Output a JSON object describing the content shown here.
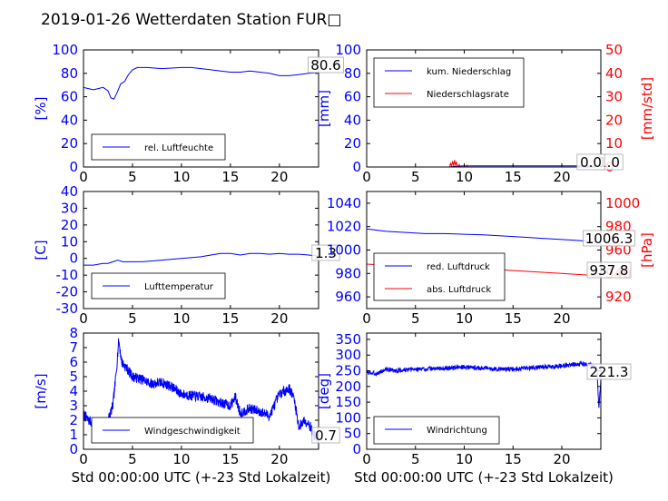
{
  "figure_title": "2019-01-26 Wetterdaten Station FUR□",
  "colors": {
    "primary": "#0000ff",
    "secondary": "#ff0000",
    "axis": "#000000",
    "legend_border": "#000000"
  },
  "chart_data": [
    {
      "type": "line",
      "title": "",
      "xlabel": "",
      "ylabel": "[%]",
      "xlim": [
        0,
        24
      ],
      "xticks": [
        0,
        5,
        10,
        15,
        20
      ],
      "ylim": [
        0,
        100
      ],
      "yticks": [
        0,
        20,
        40,
        60,
        80,
        100
      ],
      "legend": "bottom-left",
      "last_value_label": "80.6",
      "grid": false,
      "series": [
        {
          "name": "rel. Luftfeuchte",
          "axis": "left",
          "color": "#0000ff",
          "points": [
            [
              0,
              68
            ],
            [
              0.5,
              67
            ],
            [
              1,
              66
            ],
            [
              1.5,
              67
            ],
            [
              2,
              68
            ],
            [
              2.5,
              65
            ],
            [
              2.8,
              59
            ],
            [
              3.1,
              58
            ],
            [
              3.4,
              63
            ],
            [
              3.8,
              71
            ],
            [
              4.2,
              73
            ],
            [
              4.6,
              79
            ],
            [
              5,
              83
            ],
            [
              5.5,
              85
            ],
            [
              6.5,
              85
            ],
            [
              8,
              84
            ],
            [
              10,
              85
            ],
            [
              11,
              85
            ],
            [
              12,
              84
            ],
            [
              13,
              83
            ],
            [
              14,
              82
            ],
            [
              15,
              81
            ],
            [
              16,
              81
            ],
            [
              17,
              82
            ],
            [
              18,
              81
            ],
            [
              19,
              80
            ],
            [
              20,
              78
            ],
            [
              21,
              78
            ],
            [
              22,
              79
            ],
            [
              23,
              80
            ],
            [
              24,
              80.6
            ]
          ]
        }
      ]
    },
    {
      "type": "line",
      "title": "",
      "xlabel": "",
      "ylabel": "[mm]",
      "ylabel_right": "[mm/std]",
      "xlim": [
        0,
        24
      ],
      "xticks": [
        0,
        5,
        10,
        15,
        20
      ],
      "ylim": [
        0,
        100
      ],
      "yticks": [
        0,
        20,
        40,
        60,
        80,
        100
      ],
      "ylim_right": [
        0,
        50
      ],
      "yticks_right": [
        0,
        10,
        20,
        30,
        40,
        50
      ],
      "legend": "top-left",
      "last_value_label": "1.0",
      "last_value_label_2": "0.0",
      "grid": false,
      "series": [
        {
          "name": "kum. Niederschlag",
          "axis": "left",
          "color": "#0000ff",
          "points": [
            [
              0,
              0
            ],
            [
              8.5,
              0
            ],
            [
              9,
              0.5
            ],
            [
              10,
              1
            ],
            [
              24,
              1
            ]
          ]
        },
        {
          "name": "Niederschlagsrate",
          "axis": "right",
          "color": "#ff0000",
          "points": [
            [
              0,
              0
            ],
            [
              8.5,
              0
            ],
            [
              8.6,
              1.5
            ],
            [
              8.7,
              0.3
            ],
            [
              8.8,
              2.5
            ],
            [
              8.9,
              0.5
            ],
            [
              9,
              3
            ],
            [
              9.1,
              0.8
            ],
            [
              9.2,
              2
            ],
            [
              9.3,
              0.2
            ],
            [
              9.5,
              1
            ],
            [
              9.6,
              0
            ],
            [
              10.2,
              0
            ],
            [
              10.3,
              0.8
            ],
            [
              10.4,
              0
            ],
            [
              24,
              0
            ]
          ]
        }
      ]
    },
    {
      "type": "line",
      "title": "",
      "xlabel": "",
      "ylabel": "[C]",
      "xlim": [
        0,
        24
      ],
      "xticks": [
        0,
        5,
        10,
        15,
        20
      ],
      "ylim": [
        -30,
        40
      ],
      "yticks": [
        -30,
        -20,
        -10,
        0,
        10,
        20,
        30,
        40
      ],
      "legend": "bottom-left",
      "last_value_label": "1.3",
      "grid": false,
      "series": [
        {
          "name": "Lufttemperatur",
          "axis": "left",
          "color": "#0000ff",
          "points": [
            [
              0,
              -4
            ],
            [
              1,
              -4
            ],
            [
              2,
              -3
            ],
            [
              2.5,
              -3
            ],
            [
              3,
              -2
            ],
            [
              3.5,
              -1
            ],
            [
              4,
              -2
            ],
            [
              5,
              -2
            ],
            [
              6,
              -2
            ],
            [
              8,
              -1
            ],
            [
              10,
              0
            ],
            [
              12,
              1
            ],
            [
              13,
              2
            ],
            [
              14,
              3
            ],
            [
              15,
              3
            ],
            [
              16,
              2
            ],
            [
              17,
              3
            ],
            [
              18,
              3
            ],
            [
              19,
              2.5
            ],
            [
              20,
              3
            ],
            [
              21,
              2.5
            ],
            [
              22,
              2.5
            ],
            [
              23,
              2
            ],
            [
              24,
              1.3
            ]
          ]
        }
      ]
    },
    {
      "type": "line",
      "title": "",
      "xlabel": "",
      "ylabel": "",
      "ylabel_right": "[hPa]",
      "xlim": [
        0,
        24
      ],
      "xticks": [
        0,
        5,
        10,
        15,
        20
      ],
      "ylim": [
        950,
        1050
      ],
      "yticks": [
        960,
        980,
        1000,
        1020,
        1040
      ],
      "ylim_right": [
        910,
        1010
      ],
      "yticks_right": [
        920,
        940,
        960,
        980,
        1000
      ],
      "legend": "bottom-left",
      "last_value_label": "1006.3",
      "last_value_label_2": "937.8",
      "grid": false,
      "series": [
        {
          "name": "red. Luftdruck",
          "axis": "left",
          "color": "#0000ff",
          "points": [
            [
              0,
              1018
            ],
            [
              2,
              1016
            ],
            [
              4,
              1015
            ],
            [
              6,
              1014
            ],
            [
              8,
              1014
            ],
            [
              10,
              1013.5
            ],
            [
              12,
              1013
            ],
            [
              14,
              1012
            ],
            [
              16,
              1011
            ],
            [
              18,
              1010
            ],
            [
              20,
              1009
            ],
            [
              22,
              1008
            ],
            [
              24,
              1006.3
            ]
          ]
        },
        {
          "name": "abs. Luftdruck",
          "axis": "right",
          "color": "#ff0000",
          "points": [
            [
              0,
              948
            ],
            [
              2,
              947
            ],
            [
              4,
              946
            ],
            [
              6,
              945.5
            ],
            [
              8,
              945
            ],
            [
              10,
              944
            ],
            [
              12,
              943.5
            ],
            [
              14,
              943
            ],
            [
              16,
              942
            ],
            [
              18,
              941
            ],
            [
              20,
              940
            ],
            [
              22,
              939
            ],
            [
              24,
              937.8
            ]
          ]
        }
      ]
    },
    {
      "type": "line",
      "title": "",
      "xlabel": "Std 00:00:00 UTC (+-23 Std Lokalzeit)",
      "ylabel": "[m/s]",
      "xlim": [
        0,
        24
      ],
      "xticks": [
        0,
        5,
        10,
        15,
        20
      ],
      "ylim": [
        0,
        8
      ],
      "yticks": [
        0,
        1,
        2,
        3,
        4,
        5,
        6,
        7,
        8
      ],
      "legend": "bottom-left",
      "last_value_label": "0.7",
      "grid": false,
      "series": [
        {
          "name": "Windgeschwindigkeit",
          "axis": "left",
          "color": "#0000ff",
          "noise": 0.35,
          "seed": 7,
          "points": [
            [
              0,
              2.4
            ],
            [
              0.5,
              2
            ],
            [
              1,
              1.8
            ],
            [
              1.5,
              1.7
            ],
            [
              2,
              1.9
            ],
            [
              2.5,
              2
            ],
            [
              3,
              3
            ],
            [
              3.3,
              5
            ],
            [
              3.6,
              7.5
            ],
            [
              3.9,
              6
            ],
            [
              4.5,
              5.5
            ],
            [
              5,
              5
            ],
            [
              6,
              4.8
            ],
            [
              7,
              4.5
            ],
            [
              8,
              4.6
            ],
            [
              9,
              4.3
            ],
            [
              10,
              3.8
            ],
            [
              11,
              3.7
            ],
            [
              12,
              3.6
            ],
            [
              13,
              3.5
            ],
            [
              14,
              3.2
            ],
            [
              15,
              3
            ],
            [
              15.5,
              3.6
            ],
            [
              16,
              2.5
            ],
            [
              17,
              2.8
            ],
            [
              18,
              2.6
            ],
            [
              19,
              2.3
            ],
            [
              20,
              3.8
            ],
            [
              21,
              4.2
            ],
            [
              21.5,
              3.5
            ],
            [
              22,
              1.5
            ],
            [
              22.5,
              2
            ],
            [
              23,
              1.8
            ],
            [
              23.5,
              1
            ],
            [
              24,
              0.7
            ]
          ]
        }
      ]
    },
    {
      "type": "line",
      "title": "",
      "xlabel": "Std 00:00:00 UTC (+-23 Std Lokalzeit)",
      "ylabel": "[deg]",
      "xlim": [
        0,
        24
      ],
      "xticks": [
        0,
        5,
        10,
        15,
        20
      ],
      "ylim": [
        0,
        370
      ],
      "yticks": [
        0,
        50,
        100,
        150,
        200,
        250,
        300,
        350
      ],
      "legend": "bottom-left",
      "last_value_label": "221.3",
      "grid": false,
      "series": [
        {
          "name": "Windrichtung",
          "axis": "left",
          "color": "#0000ff",
          "noise": 7,
          "seed": 3,
          "points": [
            [
              0,
              245
            ],
            [
              1,
              240
            ],
            [
              2,
              255
            ],
            [
              3,
              250
            ],
            [
              5,
              255
            ],
            [
              8,
              258
            ],
            [
              10,
              262
            ],
            [
              12,
              258
            ],
            [
              14,
              255
            ],
            [
              16,
              258
            ],
            [
              18,
              262
            ],
            [
              20,
              265
            ],
            [
              21,
              270
            ],
            [
              22,
              272
            ],
            [
              23,
              268
            ],
            [
              23.6,
              260
            ],
            [
              23.8,
              130
            ],
            [
              24,
              221.3
            ]
          ]
        }
      ]
    }
  ]
}
